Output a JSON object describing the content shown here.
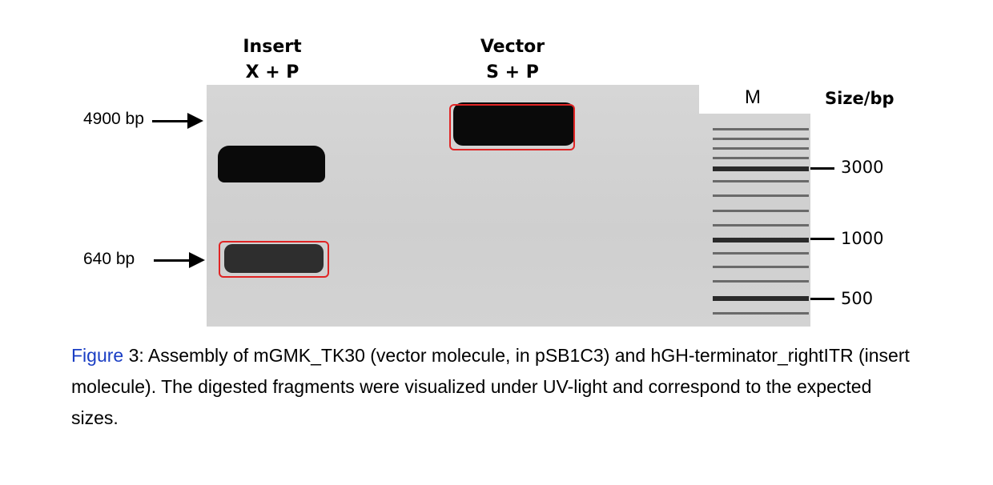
{
  "figure": {
    "lanes": [
      {
        "name": "Insert",
        "enzymes": "X + P"
      },
      {
        "name": "Vector",
        "enzymes": "S + P"
      }
    ],
    "left_markers": [
      {
        "label": "4900 bp"
      },
      {
        "label": "640 bp"
      }
    ],
    "ladder": {
      "label": "M",
      "size_header": "Size/bp",
      "ticks": [
        "3000",
        "1000",
        "500"
      ]
    }
  },
  "caption": {
    "link_text": "Figure",
    "text": " 3: Assembly of mGMK_TK30 (vector molecule, in pSB1C3) and hGH-terminator_rightITR (insert molecule). The digested fragments were visualized under UV-light and correspond to the expected sizes."
  }
}
